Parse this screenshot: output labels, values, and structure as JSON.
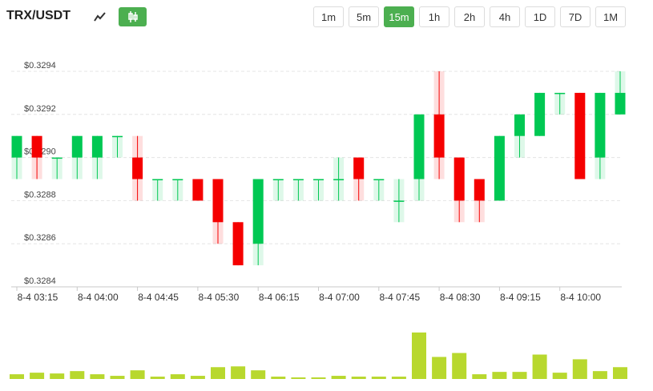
{
  "header": {
    "pair": "TRX/USDT",
    "intervals": [
      "1m",
      "5m",
      "15m",
      "1h",
      "2h",
      "4h",
      "1D",
      "7D",
      "1M"
    ],
    "active_interval": "15m",
    "line_icon": "line-chart-icon",
    "candle_icon": "candlestick-icon"
  },
  "colors": {
    "up": "#00c853",
    "down": "#f50000",
    "volume": "#b8d82e",
    "accent": "#4caf50"
  },
  "chart_data": {
    "type": "candlestick",
    "ylim": [
      0.3284,
      0.3294
    ],
    "yticks": [
      "$0.3284",
      "$0.3286",
      "$0.3288",
      "$0.3290",
      "$0.3292",
      "$0.3294"
    ],
    "xticks": [
      "8-4 03:15",
      "8-4 04:00",
      "8-4 04:45",
      "8-4 05:30",
      "8-4 06:15",
      "8-4 07:00",
      "8-4 07:45",
      "8-4 08:30",
      "8-4 09:15",
      "8-4 10:00"
    ],
    "grid": true,
    "candles": [
      {
        "o": 0.329,
        "h": 0.3291,
        "l": 0.3289,
        "c": 0.3291
      },
      {
        "o": 0.3291,
        "h": 0.3291,
        "l": 0.3289,
        "c": 0.329
      },
      {
        "o": 0.329,
        "h": 0.329,
        "l": 0.3289,
        "c": 0.329
      },
      {
        "o": 0.329,
        "h": 0.3291,
        "l": 0.3289,
        "c": 0.3291
      },
      {
        "o": 0.329,
        "h": 0.3291,
        "l": 0.3289,
        "c": 0.3291
      },
      {
        "o": 0.3291,
        "h": 0.3291,
        "l": 0.329,
        "c": 0.3291
      },
      {
        "o": 0.329,
        "h": 0.3291,
        "l": 0.3288,
        "c": 0.3289
      },
      {
        "o": 0.3289,
        "h": 0.3289,
        "l": 0.3288,
        "c": 0.3289
      },
      {
        "o": 0.3289,
        "h": 0.3289,
        "l": 0.3288,
        "c": 0.3289
      },
      {
        "o": 0.3289,
        "h": 0.3289,
        "l": 0.3288,
        "c": 0.3288
      },
      {
        "o": 0.3289,
        "h": 0.3289,
        "l": 0.3286,
        "c": 0.3287
      },
      {
        "o": 0.3287,
        "h": 0.3287,
        "l": 0.3285,
        "c": 0.3285
      },
      {
        "o": 0.3286,
        "h": 0.3289,
        "l": 0.3285,
        "c": 0.3289
      },
      {
        "o": 0.3289,
        "h": 0.3289,
        "l": 0.3288,
        "c": 0.3289
      },
      {
        "o": 0.3289,
        "h": 0.3289,
        "l": 0.3288,
        "c": 0.3289
      },
      {
        "o": 0.3289,
        "h": 0.3289,
        "l": 0.3288,
        "c": 0.3289
      },
      {
        "o": 0.3289,
        "h": 0.329,
        "l": 0.3288,
        "c": 0.3289
      },
      {
        "o": 0.329,
        "h": 0.329,
        "l": 0.3288,
        "c": 0.3289
      },
      {
        "o": 0.3289,
        "h": 0.3289,
        "l": 0.3288,
        "c": 0.3289
      },
      {
        "o": 0.3288,
        "h": 0.3289,
        "l": 0.3287,
        "c": 0.3288
      },
      {
        "o": 0.3289,
        "h": 0.3292,
        "l": 0.3288,
        "c": 0.3292
      },
      {
        "o": 0.3292,
        "h": 0.3294,
        "l": 0.3289,
        "c": 0.329
      },
      {
        "o": 0.329,
        "h": 0.329,
        "l": 0.3287,
        "c": 0.3288
      },
      {
        "o": 0.3289,
        "h": 0.3289,
        "l": 0.3287,
        "c": 0.3288
      },
      {
        "o": 0.3288,
        "h": 0.3291,
        "l": 0.3288,
        "c": 0.3291
      },
      {
        "o": 0.3291,
        "h": 0.3292,
        "l": 0.329,
        "c": 0.3292
      },
      {
        "o": 0.3291,
        "h": 0.3293,
        "l": 0.3291,
        "c": 0.3293
      },
      {
        "o": 0.3293,
        "h": 0.3293,
        "l": 0.3292,
        "c": 0.3293
      },
      {
        "o": 0.3293,
        "h": 0.3293,
        "l": 0.3289,
        "c": 0.3289
      },
      {
        "o": 0.329,
        "h": 0.3293,
        "l": 0.3289,
        "c": 0.3293
      },
      {
        "o": 0.3292,
        "h": 0.3294,
        "l": 0.3292,
        "c": 0.3293
      }
    ],
    "volume": [
      6,
      8,
      7,
      10,
      6,
      4,
      11,
      3,
      6,
      4,
      15,
      16,
      11,
      3,
      2,
      2,
      4,
      3,
      3,
      3,
      59,
      28,
      33,
      6,
      9,
      9,
      31,
      8,
      25,
      10,
      15
    ]
  }
}
